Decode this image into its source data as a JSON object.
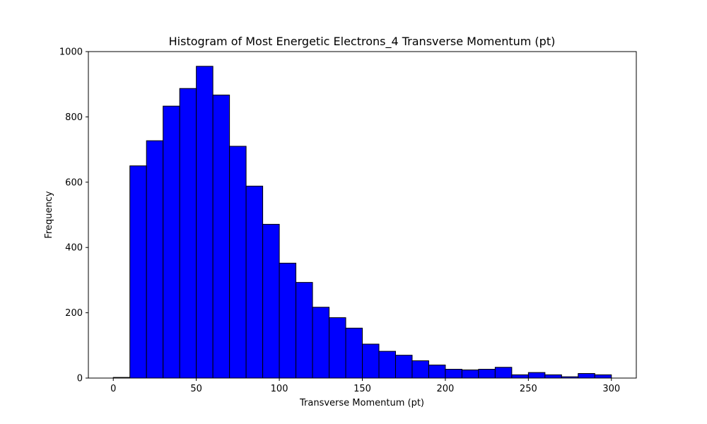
{
  "chart_data": {
    "type": "bar",
    "title": "Histogram of Most Energetic Electrons_4 Transverse Momentum (pt)",
    "xlabel": "Transverse Momentum (pt)",
    "ylabel": "Frequency",
    "xlim": [
      -15,
      315
    ],
    "ylim": [
      0,
      1000
    ],
    "bin_width": 10,
    "bin_edges": [
      0,
      10,
      20,
      30,
      40,
      50,
      60,
      70,
      80,
      90,
      100,
      110,
      120,
      130,
      140,
      150,
      160,
      170,
      180,
      190,
      200,
      210,
      220,
      230,
      240,
      250,
      260,
      270,
      280,
      290,
      300
    ],
    "values": [
      2,
      650,
      727,
      833,
      887,
      955,
      867,
      710,
      588,
      471,
      352,
      293,
      217,
      185,
      153,
      104,
      82,
      70,
      53,
      40,
      27,
      25,
      27,
      33,
      10,
      17,
      10,
      4,
      14,
      10
    ],
    "x_ticks": [
      "0",
      "50",
      "100",
      "150",
      "200",
      "250",
      "300"
    ],
    "y_ticks": [
      "0",
      "200",
      "400",
      "600",
      "800",
      "1000"
    ],
    "grid": false,
    "bar_color": "#0000ff",
    "edge_color": "#000000"
  }
}
